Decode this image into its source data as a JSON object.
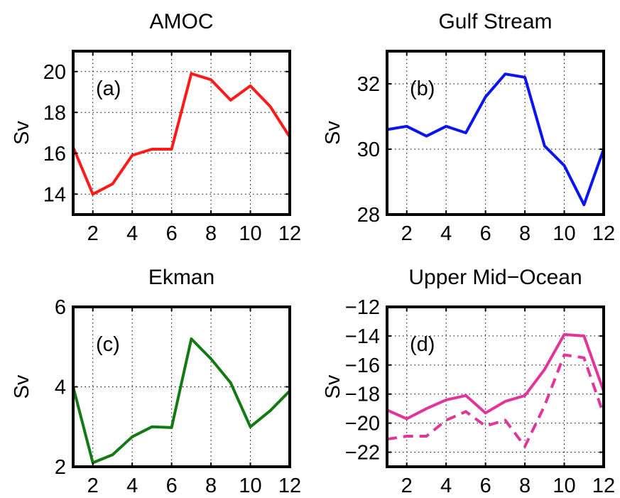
{
  "chart_data": [
    {
      "type": "line",
      "title": "AMOC",
      "panel_label": "(a)",
      "xlabel": "",
      "ylabel": "Sv",
      "xlim": [
        1,
        12
      ],
      "ylim": [
        13,
        21
      ],
      "xticks": [
        2,
        4,
        6,
        8,
        10,
        12
      ],
      "yticks": [
        14,
        16,
        18,
        20
      ],
      "grid": true,
      "series": [
        {
          "color": "#ff1a1a",
          "dashed": false,
          "x": [
            1,
            2,
            3,
            4,
            5,
            6,
            7,
            8,
            9,
            10,
            11,
            12
          ],
          "values": [
            16.3,
            14.0,
            14.5,
            15.9,
            16.2,
            16.2,
            19.9,
            19.6,
            18.6,
            19.3,
            18.3,
            16.8
          ]
        }
      ]
    },
    {
      "type": "line",
      "title": "Gulf Stream",
      "panel_label": "(b)",
      "xlabel": "",
      "ylabel": "Sv",
      "xlim": [
        1,
        12
      ],
      "ylim": [
        28,
        33
      ],
      "xticks": [
        2,
        4,
        6,
        8,
        10,
        12
      ],
      "yticks": [
        28,
        30,
        32
      ],
      "grid": true,
      "series": [
        {
          "color": "#0a14f0",
          "dashed": false,
          "x": [
            1,
            2,
            3,
            4,
            5,
            6,
            7,
            8,
            9,
            10,
            11,
            12
          ],
          "values": [
            30.6,
            30.7,
            30.4,
            30.7,
            30.5,
            31.6,
            32.3,
            32.2,
            30.1,
            29.5,
            28.3,
            30.0
          ]
        }
      ]
    },
    {
      "type": "line",
      "title": "Ekman",
      "panel_label": "(c)",
      "xlabel": "",
      "ylabel": "Sv",
      "xlim": [
        1,
        12
      ],
      "ylim": [
        2,
        6
      ],
      "xticks": [
        2,
        4,
        6,
        8,
        10,
        12
      ],
      "yticks": [
        2,
        4,
        6
      ],
      "grid": true,
      "series": [
        {
          "color": "#137a13",
          "dashed": false,
          "x": [
            1,
            2,
            3,
            4,
            5,
            6,
            7,
            8,
            9,
            10,
            11,
            12
          ],
          "values": [
            4.0,
            2.1,
            2.3,
            2.75,
            3.0,
            2.98,
            5.2,
            4.7,
            4.1,
            3.0,
            3.4,
            3.9
          ]
        }
      ]
    },
    {
      "type": "line",
      "title": "Upper Mid−Ocean",
      "panel_label": "(d)",
      "xlabel": "",
      "ylabel": "Sv",
      "xlim": [
        1,
        12
      ],
      "ylim": [
        -23,
        -12
      ],
      "xticks": [
        2,
        4,
        6,
        8,
        10,
        12
      ],
      "yticks": [
        -22,
        -20,
        -18,
        -16,
        -14,
        -12
      ],
      "ytick_labels": [
        "−22",
        "−20",
        "−18",
        "−16",
        "−14",
        "−12"
      ],
      "grid": true,
      "series": [
        {
          "color": "#e0359b",
          "dashed": false,
          "x": [
            1,
            2,
            3,
            4,
            5,
            6,
            7,
            8,
            9,
            10,
            11,
            12
          ],
          "values": [
            -19.1,
            -19.7,
            -19.0,
            -18.4,
            -18.1,
            -19.3,
            -18.5,
            -18.1,
            -16.3,
            -13.9,
            -14.0,
            -17.8
          ]
        },
        {
          "color": "#e0359b",
          "dashed": true,
          "x": [
            1,
            2,
            3,
            4,
            5,
            6,
            7,
            8,
            9,
            10,
            11,
            12
          ],
          "values": [
            -21.1,
            -20.9,
            -20.9,
            -19.8,
            -19.2,
            -20.2,
            -19.8,
            -21.6,
            -18.8,
            -15.3,
            -15.5,
            -19.4
          ]
        }
      ]
    }
  ]
}
